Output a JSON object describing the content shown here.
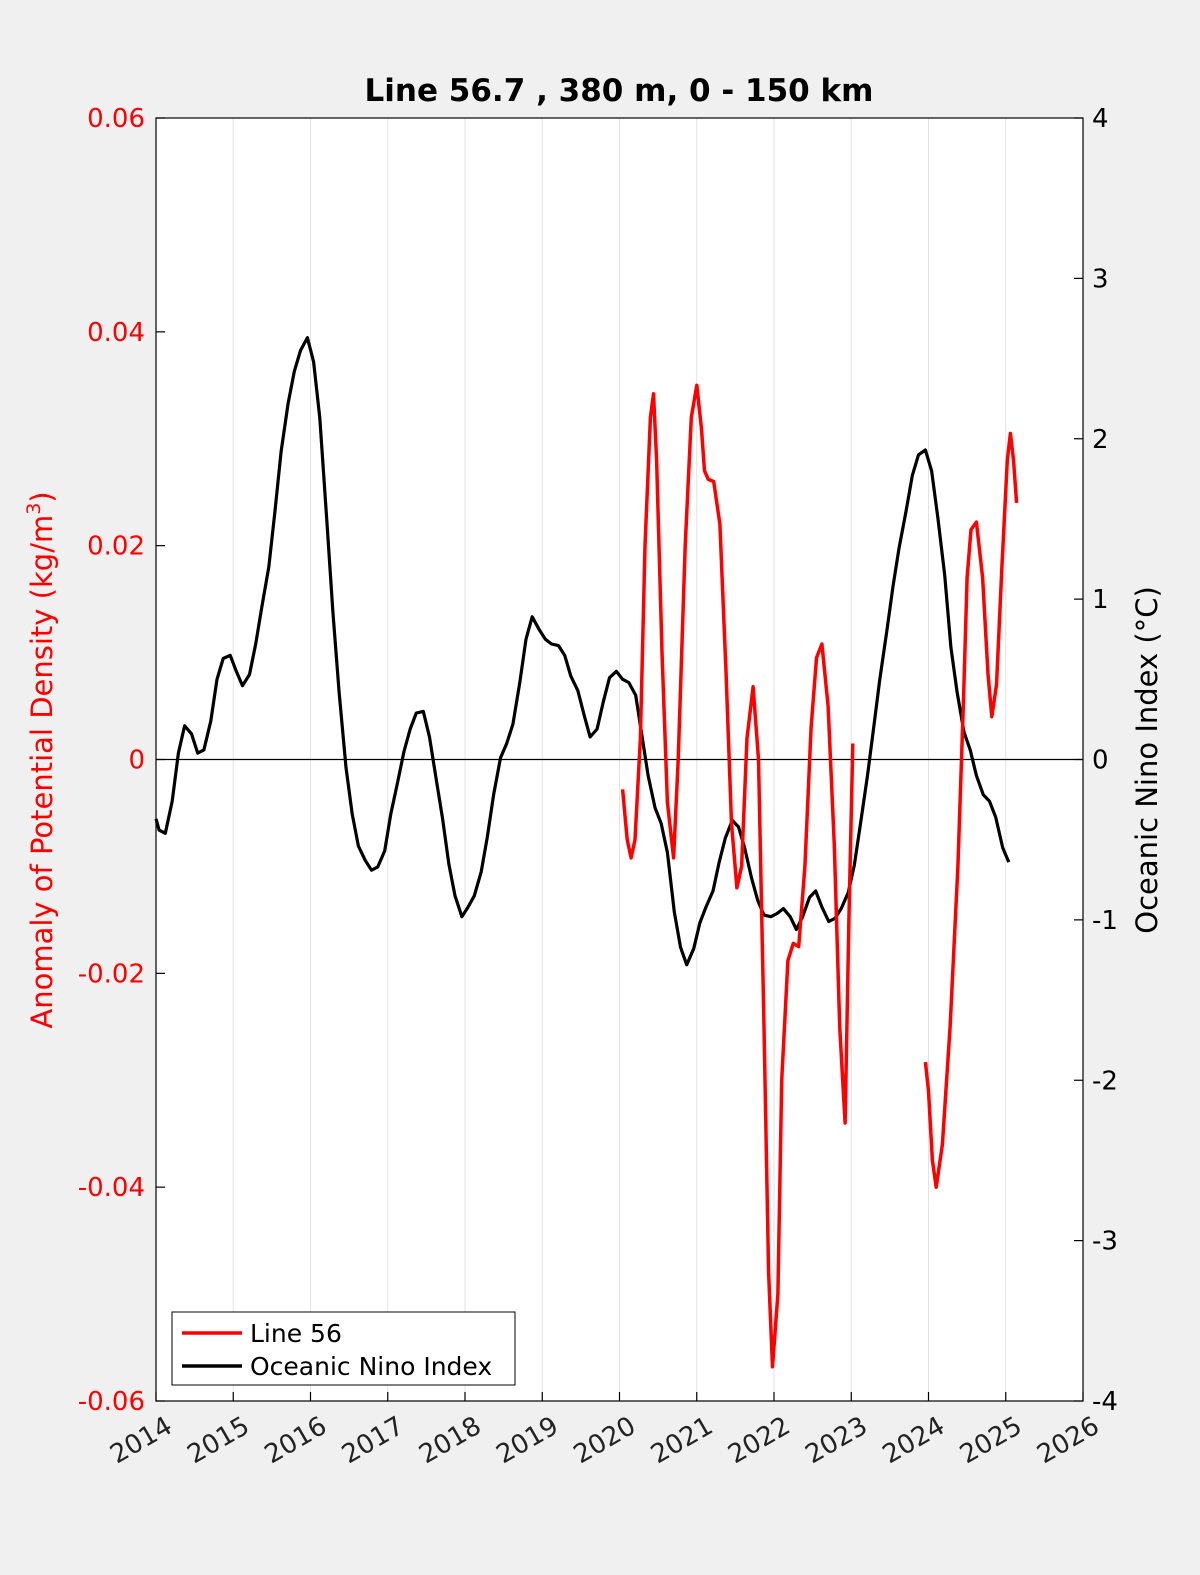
{
  "chart_data": {
    "type": "line",
    "title": "Line 56.7 , 380 m, 0 - 150 km",
    "ylabel_left": "Anomaly of Potential Density (kg/m",
    "ylabel_left_sup": "3",
    "ylabel_left_close": ")",
    "ylabel_right": "Oceanic Nino Index (°C)",
    "xlim": [
      2014,
      2026
    ],
    "ylim_left": [
      -0.06,
      0.06
    ],
    "ylim_right": [
      -4,
      4
    ],
    "x_ticks": [
      "2014",
      "2015",
      "2016",
      "2017",
      "2018",
      "2019",
      "2020",
      "2021",
      "2022",
      "2023",
      "2024",
      "2025",
      "2026"
    ],
    "y_left_ticks": [
      "-0.06",
      "-0.04",
      "-0.02",
      "0",
      "0.02",
      "0.04",
      "0.06"
    ],
    "y_right_ticks": [
      "-4",
      "-3",
      "-2",
      "-1",
      "0",
      "1",
      "2",
      "3",
      "4"
    ],
    "grid": "vertical",
    "legend_position": "bottom-left",
    "colors": {
      "line56": "#ff0000",
      "oni": "#000000",
      "left_axis": "#ff0000",
      "right_axis": "#000000"
    },
    "series": [
      {
        "name": "Line 56",
        "axis": "left",
        "segments": [
          [
            [
              2020.04,
              -0.0028
            ],
            [
              2020.1,
              -0.0075
            ],
            [
              2020.15,
              -0.0092
            ],
            [
              2020.2,
              -0.0075
            ],
            [
              2020.27,
              0.002
            ],
            [
              2020.33,
              0.02
            ],
            [
              2020.4,
              0.032
            ],
            [
              2020.44,
              0.0342
            ],
            [
              2020.48,
              0.028
            ],
            [
              2020.55,
              0.01
            ],
            [
              2020.62,
              -0.004
            ],
            [
              2020.7,
              -0.0092
            ],
            [
              2020.76,
              0.0
            ],
            [
              2020.85,
              0.02
            ],
            [
              2020.93,
              0.032
            ],
            [
              2021.0,
              0.035
            ],
            [
              2021.06,
              0.031
            ],
            [
              2021.1,
              0.027
            ],
            [
              2021.15,
              0.0262
            ],
            [
              2021.22,
              0.026
            ],
            [
              2021.3,
              0.022
            ],
            [
              2021.38,
              0.008
            ],
            [
              2021.45,
              -0.006
            ],
            [
              2021.52,
              -0.012
            ],
            [
              2021.58,
              -0.01
            ],
            [
              2021.65,
              0.002
            ],
            [
              2021.73,
              0.0068
            ],
            [
              2021.8,
              0.0
            ],
            [
              2021.87,
              -0.025
            ],
            [
              2021.93,
              -0.048
            ],
            [
              2021.98,
              -0.0568
            ],
            [
              2022.05,
              -0.05
            ],
            [
              2022.1,
              -0.03
            ],
            [
              2022.18,
              -0.0188
            ],
            [
              2022.25,
              -0.0172
            ],
            [
              2022.32,
              -0.0175
            ],
            [
              2022.4,
              -0.01
            ],
            [
              2022.48,
              0.003
            ],
            [
              2022.55,
              0.0095
            ],
            [
              2022.62,
              0.0108
            ],
            [
              2022.7,
              0.005
            ],
            [
              2022.78,
              -0.008
            ],
            [
              2022.85,
              -0.025
            ],
            [
              2022.92,
              -0.034
            ],
            [
              2022.97,
              -0.015
            ],
            [
              2023.02,
              0.0015
            ]
          ],
          [
            [
              2023.96,
              -0.0283
            ],
            [
              2024.0,
              -0.031
            ],
            [
              2024.05,
              -0.0375
            ],
            [
              2024.1,
              -0.04
            ],
            [
              2024.18,
              -0.036
            ],
            [
              2024.28,
              -0.025
            ],
            [
              2024.38,
              -0.01
            ],
            [
              2024.45,
              0.005
            ],
            [
              2024.5,
              0.017
            ],
            [
              2024.55,
              0.0215
            ],
            [
              2024.62,
              0.0222
            ],
            [
              2024.7,
              0.017
            ],
            [
              2024.77,
              0.008
            ],
            [
              2024.82,
              0.004
            ],
            [
              2024.88,
              0.007
            ],
            [
              2024.95,
              0.018
            ],
            [
              2025.02,
              0.028
            ],
            [
              2025.06,
              0.0305
            ],
            [
              2025.1,
              0.028
            ],
            [
              2025.14,
              0.024
            ]
          ]
        ]
      },
      {
        "name": "Oceanic Nino Index",
        "axis": "right",
        "points": [
          [
            2014.0,
            -0.37
          ],
          [
            2014.04,
            -0.44
          ],
          [
            2014.12,
            -0.46
          ],
          [
            2014.21,
            -0.26
          ],
          [
            2014.29,
            0.04
          ],
          [
            2014.37,
            0.21
          ],
          [
            2014.46,
            0.16
          ],
          [
            2014.54,
            0.04
          ],
          [
            2014.62,
            0.06
          ],
          [
            2014.71,
            0.24
          ],
          [
            2014.79,
            0.5
          ],
          [
            2014.87,
            0.63
          ],
          [
            2014.96,
            0.65
          ],
          [
            2015.04,
            0.55
          ],
          [
            2015.12,
            0.46
          ],
          [
            2015.21,
            0.53
          ],
          [
            2015.29,
            0.72
          ],
          [
            2015.37,
            0.95
          ],
          [
            2015.46,
            1.2
          ],
          [
            2015.54,
            1.55
          ],
          [
            2015.62,
            1.92
          ],
          [
            2015.71,
            2.22
          ],
          [
            2015.79,
            2.42
          ],
          [
            2015.87,
            2.55
          ],
          [
            2015.96,
            2.63
          ],
          [
            2016.04,
            2.48
          ],
          [
            2016.12,
            2.13
          ],
          [
            2016.21,
            1.5
          ],
          [
            2016.29,
            0.92
          ],
          [
            2016.37,
            0.42
          ],
          [
            2016.46,
            -0.05
          ],
          [
            2016.54,
            -0.34
          ],
          [
            2016.62,
            -0.54
          ],
          [
            2016.71,
            -0.63
          ],
          [
            2016.79,
            -0.69
          ],
          [
            2016.87,
            -0.67
          ],
          [
            2016.96,
            -0.57
          ],
          [
            2017.04,
            -0.34
          ],
          [
            2017.12,
            -0.16
          ],
          [
            2017.21,
            0.05
          ],
          [
            2017.29,
            0.19
          ],
          [
            2017.37,
            0.29
          ],
          [
            2017.46,
            0.3
          ],
          [
            2017.54,
            0.14
          ],
          [
            2017.62,
            -0.1
          ],
          [
            2017.71,
            -0.37
          ],
          [
            2017.79,
            -0.65
          ],
          [
            2017.87,
            -0.85
          ],
          [
            2017.96,
            -0.98
          ],
          [
            2018.04,
            -0.92
          ],
          [
            2018.12,
            -0.85
          ],
          [
            2018.21,
            -0.7
          ],
          [
            2018.29,
            -0.48
          ],
          [
            2018.37,
            -0.22
          ],
          [
            2018.46,
            0.01
          ],
          [
            2018.54,
            0.1
          ],
          [
            2018.62,
            0.22
          ],
          [
            2018.71,
            0.48
          ],
          [
            2018.79,
            0.75
          ],
          [
            2018.87,
            0.89
          ],
          [
            2018.96,
            0.81
          ],
          [
            2019.04,
            0.75
          ],
          [
            2019.12,
            0.72
          ],
          [
            2019.21,
            0.71
          ],
          [
            2019.29,
            0.65
          ],
          [
            2019.37,
            0.52
          ],
          [
            2019.46,
            0.43
          ],
          [
            2019.54,
            0.28
          ],
          [
            2019.62,
            0.14
          ],
          [
            2019.71,
            0.19
          ],
          [
            2019.79,
            0.36
          ],
          [
            2019.87,
            0.51
          ],
          [
            2019.96,
            0.55
          ],
          [
            2020.04,
            0.5
          ],
          [
            2020.12,
            0.48
          ],
          [
            2020.21,
            0.4
          ],
          [
            2020.29,
            0.15
          ],
          [
            2020.37,
            -0.1
          ],
          [
            2020.46,
            -0.3
          ],
          [
            2020.54,
            -0.4
          ],
          [
            2020.62,
            -0.58
          ],
          [
            2020.71,
            -0.95
          ],
          [
            2020.79,
            -1.17
          ],
          [
            2020.87,
            -1.28
          ],
          [
            2020.96,
            -1.18
          ],
          [
            2021.04,
            -1.02
          ],
          [
            2021.12,
            -0.92
          ],
          [
            2021.21,
            -0.82
          ],
          [
            2021.29,
            -0.64
          ],
          [
            2021.37,
            -0.49
          ],
          [
            2021.46,
            -0.38
          ],
          [
            2021.54,
            -0.42
          ],
          [
            2021.62,
            -0.55
          ],
          [
            2021.71,
            -0.74
          ],
          [
            2021.79,
            -0.88
          ],
          [
            2021.87,
            -0.97
          ],
          [
            2021.96,
            -0.98
          ],
          [
            2022.04,
            -0.96
          ],
          [
            2022.12,
            -0.93
          ],
          [
            2022.21,
            -0.98
          ],
          [
            2022.29,
            -1.06
          ],
          [
            2022.37,
            -0.98
          ],
          [
            2022.46,
            -0.86
          ],
          [
            2022.54,
            -0.82
          ],
          [
            2022.62,
            -0.92
          ],
          [
            2022.71,
            -1.01
          ],
          [
            2022.79,
            -0.99
          ],
          [
            2022.87,
            -0.93
          ],
          [
            2022.96,
            -0.83
          ],
          [
            2023.04,
            -0.66
          ],
          [
            2023.12,
            -0.4
          ],
          [
            2023.21,
            -0.1
          ],
          [
            2023.29,
            0.2
          ],
          [
            2023.37,
            0.5
          ],
          [
            2023.46,
            0.8
          ],
          [
            2023.54,
            1.08
          ],
          [
            2023.62,
            1.32
          ],
          [
            2023.71,
            1.55
          ],
          [
            2023.79,
            1.77
          ],
          [
            2023.87,
            1.9
          ],
          [
            2023.96,
            1.93
          ],
          [
            2024.04,
            1.8
          ],
          [
            2024.12,
            1.51
          ],
          [
            2024.21,
            1.15
          ],
          [
            2024.29,
            0.7
          ],
          [
            2024.37,
            0.42
          ],
          [
            2024.46,
            0.17
          ],
          [
            2024.54,
            0.06
          ],
          [
            2024.62,
            -0.1
          ],
          [
            2024.71,
            -0.22
          ],
          [
            2024.79,
            -0.26
          ],
          [
            2024.87,
            -0.36
          ],
          [
            2024.96,
            -0.55
          ],
          [
            2025.04,
            -0.64
          ]
        ]
      }
    ]
  }
}
